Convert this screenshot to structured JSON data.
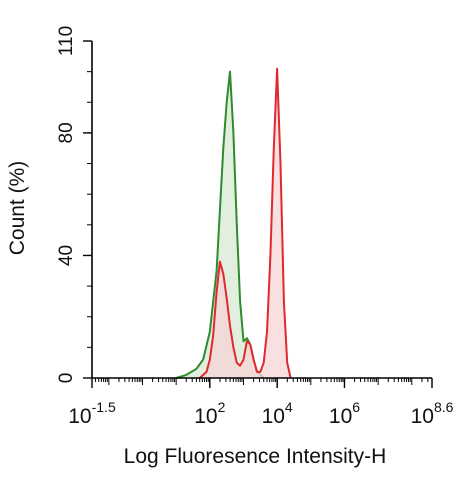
{
  "chart_data": {
    "type": "area",
    "title": "",
    "xlabel": "Log Fluoresence Intensity-H",
    "ylabel": "Count  (%)",
    "x_scale": "log10",
    "xlim": [
      -1.5,
      8.6
    ],
    "ylim": [
      0,
      110
    ],
    "grid": false,
    "legend": "none",
    "x_ticks": [
      {
        "base": "10",
        "exp": "-1.5",
        "value": -1.5
      },
      {
        "base": "10",
        "exp": "2",
        "value": 2
      },
      {
        "base": "10",
        "exp": "4",
        "value": 4
      },
      {
        "base": "10",
        "exp": "6",
        "value": 6
      },
      {
        "base": "10",
        "exp": "8.6",
        "value": 8.6
      }
    ],
    "y_ticks": [
      {
        "label": "0",
        "value": 0
      },
      {
        "label": "40",
        "value": 40
      },
      {
        "label": "80",
        "value": 80
      },
      {
        "label": "110",
        "value": 110
      }
    ],
    "series": [
      {
        "color": "#2e8b2e",
        "fill": "#d9ead3",
        "x": [
          1.0,
          1.3,
          1.6,
          1.8,
          2.0,
          2.2,
          2.4,
          2.5,
          2.6,
          2.7,
          2.8,
          2.9,
          3.0,
          3.1,
          3.2,
          3.3,
          3.4,
          3.5,
          3.6
        ],
        "values": [
          0,
          1,
          3,
          6,
          15,
          35,
          75,
          90,
          100,
          80,
          50,
          25,
          12,
          13,
          11,
          6,
          2,
          1,
          0
        ]
      },
      {
        "color": "#e0282e",
        "fill": "#f6d4d6",
        "x": [
          1.7,
          1.9,
          2.0,
          2.1,
          2.2,
          2.3,
          2.4,
          2.5,
          2.6,
          2.7,
          2.8,
          2.9,
          3.0,
          3.1,
          3.2,
          3.3,
          3.4,
          3.5,
          3.6,
          3.7,
          3.8,
          3.9,
          4.0,
          4.1,
          4.2,
          4.3,
          4.4
        ],
        "values": [
          0,
          2,
          6,
          14,
          28,
          38,
          34,
          26,
          17,
          10,
          5,
          4,
          6,
          12,
          11,
          6,
          2,
          2,
          5,
          15,
          40,
          75,
          101,
          70,
          25,
          5,
          0
        ]
      }
    ]
  }
}
